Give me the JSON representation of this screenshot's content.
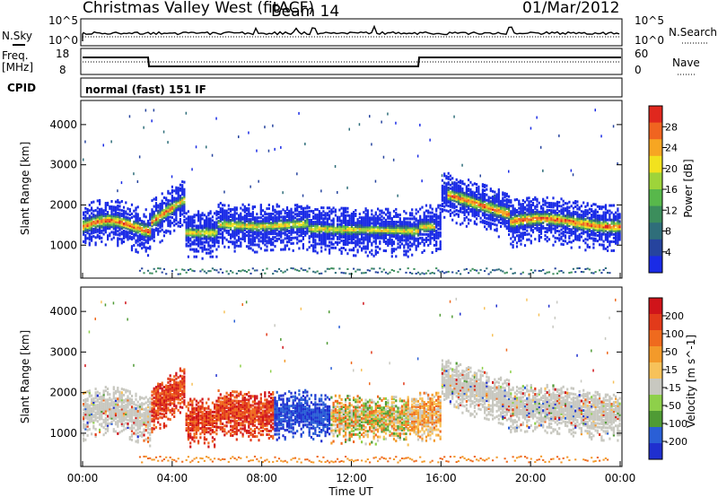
{
  "header": {
    "station": "Christmas Valley West (fitACF)",
    "beam": "Beam 14",
    "date": "01/Mar/2012"
  },
  "strip_panels": {
    "nsky_label": "N.Sky",
    "nsky_ticks": [
      "10^5",
      "10^0"
    ],
    "nsearch_label": "N.Search",
    "nsearch_ticks": [
      "10^5",
      "10^0"
    ],
    "freq_label_line1": "Freq.",
    "freq_label_line2": "[MHz]",
    "freq_ticks": [
      "18",
      "8"
    ],
    "nave_label": "Nave",
    "nave_ticks": [
      "60",
      "0"
    ],
    "cpid_label": "CPID",
    "cpid_text": "normal (fast) 151 IF"
  },
  "chart_data": [
    {
      "type": "heatmap",
      "panel": "power",
      "ylabel": "Slant Range [km]",
      "xlabel": "",
      "yticks": [
        "1000",
        "2000",
        "3000",
        "4000"
      ],
      "ylim": [
        180,
        4600
      ],
      "xlim_hours": [
        0,
        24
      ],
      "colorbar": {
        "label": "Power [dB]",
        "ticks": [
          "28",
          "24",
          "20",
          "16",
          "12",
          "8",
          "4"
        ],
        "range": [
          0,
          30
        ],
        "colors": [
          "#1a2be6",
          "#26449e",
          "#2f6e7a",
          "#3c8e5c",
          "#58b84b",
          "#9ed43a",
          "#f2e21e",
          "#f7a622",
          "#f06420",
          "#e0281e"
        ]
      }
    },
    {
      "type": "heatmap",
      "panel": "velocity",
      "ylabel": "Slant Range [km]",
      "xlabel": "Time UT",
      "yticks": [
        "1000",
        "2000",
        "3000",
        "4000"
      ],
      "ylim": [
        180,
        4600
      ],
      "xlim_hours": [
        0,
        24
      ],
      "xticks": [
        "00:00",
        "04:00",
        "08:00",
        "12:00",
        "16:00",
        "20:00",
        "00:00"
      ],
      "colorbar": {
        "label": "Velocity [m s^-1]",
        "ticks": [
          "200",
          "100",
          "50",
          "15",
          "-15",
          "-50",
          "-100",
          "-200"
        ],
        "colors": [
          "#1f2fcf",
          "#2a5fd6",
          "#4f9b35",
          "#8ed04a",
          "#c8c8c0",
          "#f7c25a",
          "#f39a2a",
          "#ef6a1e",
          "#e23a1a",
          "#d0141a"
        ]
      }
    }
  ]
}
